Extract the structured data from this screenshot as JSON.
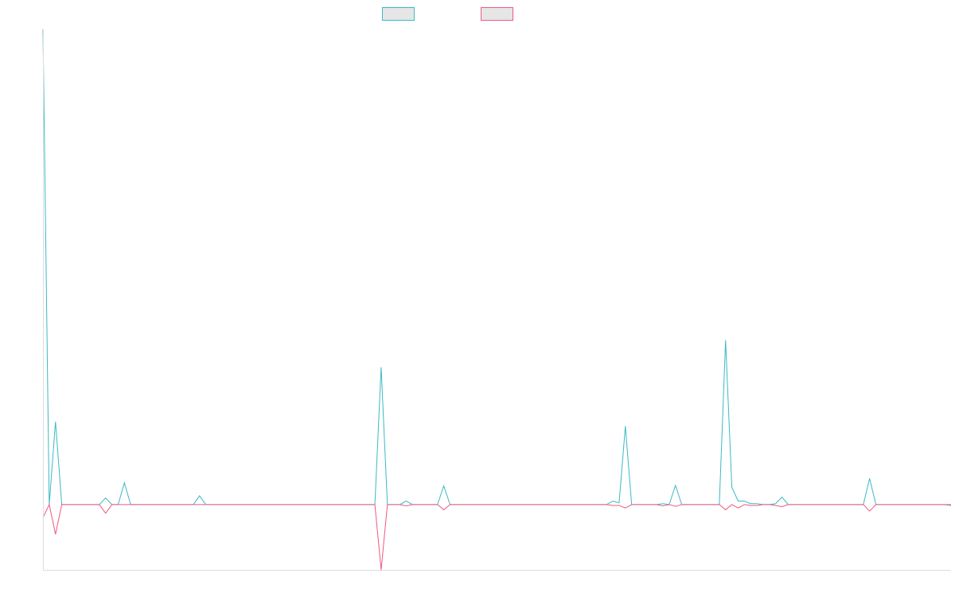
{
  "chart_data": {
    "type": "line",
    "title": "",
    "xlabel": "",
    "ylabel": "",
    "ylim": [
      -1.5,
      10.9
    ],
    "grid": false,
    "legend": {
      "position": "top-center"
    },
    "series": [
      {
        "color": "#3cb9c4",
        "fill": "#e6e6e6",
        "values": [
          10.9,
          0,
          1.9,
          0,
          0,
          0,
          0,
          0,
          0,
          0,
          0.15,
          0,
          0,
          0.5,
          0,
          0,
          0,
          0,
          0,
          0,
          0,
          0,
          0,
          0,
          0,
          0.2,
          0,
          0,
          0,
          0,
          0,
          0,
          0,
          0,
          0,
          0,
          0,
          0,
          0,
          0,
          0,
          0,
          0,
          0,
          0,
          0,
          0,
          0,
          0,
          0,
          0,
          0,
          0,
          0,
          3.15,
          0,
          0,
          0,
          0.08,
          0,
          0,
          0,
          0,
          0,
          0.43,
          0,
          0,
          0,
          0,
          0,
          0,
          0,
          0,
          0,
          0,
          0,
          0,
          0,
          0,
          0,
          0,
          0,
          0,
          0,
          0,
          0,
          0,
          0,
          0,
          0,
          0,
          0.08,
          0.04,
          1.8,
          0,
          0,
          0,
          0,
          0,
          0.02,
          0,
          0.44,
          0,
          0,
          0,
          0,
          0,
          0,
          0,
          3.77,
          0.4,
          0.08,
          0.08,
          0.02,
          0.02,
          0,
          0,
          0.02,
          0.17,
          0,
          0,
          0,
          0,
          0,
          0,
          0,
          0,
          0,
          0,
          0,
          0,
          0,
          0.6,
          0,
          0,
          0,
          0,
          0,
          0,
          0,
          0,
          0,
          0,
          0,
          0,
          0
        ]
      },
      {
        "color": "#f0587e",
        "fill": "#e6e6e6",
        "values": [
          -0.3,
          0,
          -0.68,
          0,
          0,
          0,
          0,
          0,
          0,
          0,
          -0.2,
          0,
          0,
          0,
          0,
          0,
          0,
          0,
          0,
          0,
          0,
          0,
          0,
          0,
          0,
          0,
          0,
          0,
          0,
          0,
          0,
          0,
          0,
          0,
          0,
          0,
          0,
          0,
          0,
          0,
          0,
          0,
          0,
          0,
          0,
          0,
          0,
          0,
          0,
          0,
          0,
          0,
          0,
          0,
          -1.5,
          0,
          0,
          0,
          -0.03,
          0,
          0,
          0,
          0,
          0,
          -0.12,
          0,
          0,
          0,
          0,
          0,
          0,
          0,
          0,
          0,
          0,
          0,
          0,
          0,
          0,
          0,
          0,
          0,
          0,
          0,
          0,
          0,
          0,
          0,
          0,
          0,
          0,
          -0.02,
          -0.02,
          -0.08,
          0,
          0,
          0,
          0,
          0,
          -0.03,
          0,
          -0.04,
          0,
          0,
          0,
          0,
          0,
          0,
          0,
          -0.12,
          0,
          -0.08,
          0,
          -0.02,
          -0.02,
          0,
          0,
          -0.02,
          -0.05,
          0,
          0,
          0,
          0,
          0,
          0,
          0,
          0,
          0,
          0,
          0,
          0,
          0,
          -0.15,
          0,
          0,
          0,
          0,
          0,
          0,
          0,
          0,
          0,
          0,
          0,
          0,
          -0.02
        ]
      }
    ]
  }
}
